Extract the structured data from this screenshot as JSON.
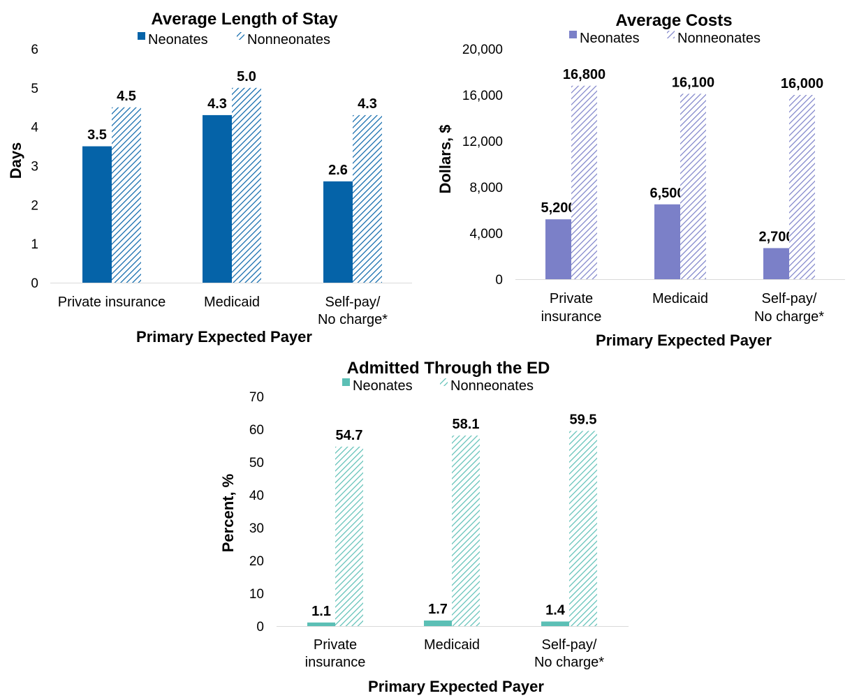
{
  "chart_data": [
    {
      "type": "bar",
      "title": "Average Length of Stay",
      "xlabel": "Primary Expected Payer",
      "ylabel": "Days",
      "ylim": [
        0,
        6
      ],
      "yticks": [
        "0",
        "1",
        "2",
        "3",
        "4",
        "5",
        "6"
      ],
      "yticks_values": [
        0,
        1,
        2,
        3,
        4,
        5,
        6
      ],
      "categories": [
        [
          "Private insurance"
        ],
        [
          "Medicaid"
        ],
        [
          "Self-pay/",
          "No charge*"
        ]
      ],
      "series": [
        {
          "name": "Neonates",
          "values": [
            3.5,
            4.3,
            2.6
          ],
          "labels": [
            "3.5",
            "4.3",
            "2.6"
          ],
          "pattern": "solid"
        },
        {
          "name": "Nonneonates",
          "values": [
            4.5,
            5.0,
            4.3
          ],
          "labels": [
            "4.5",
            "5.0",
            "4.3"
          ],
          "pattern": "hatched"
        }
      ],
      "color": "#0563A8",
      "grid": false,
      "legend_position": "top"
    },
    {
      "type": "bar",
      "title": "Average Costs",
      "xlabel": "Primary Expected Payer",
      "ylabel": "Dollars, $",
      "ylim": [
        0,
        20000
      ],
      "yticks": [
        "0",
        "4,000",
        "8,000",
        "12,000",
        "16,000",
        "20,000"
      ],
      "yticks_values": [
        0,
        4000,
        8000,
        12000,
        16000,
        20000
      ],
      "categories": [
        [
          "Private",
          "insurance"
        ],
        [
          "Medicaid"
        ],
        [
          "Self-pay/",
          "No charge*"
        ]
      ],
      "series": [
        {
          "name": "Neonates",
          "values": [
            5200,
            6500,
            2700
          ],
          "labels": [
            "5,200",
            "6,500",
            "2,700"
          ],
          "pattern": "solid"
        },
        {
          "name": "Nonneonates",
          "values": [
            16800,
            16100,
            16000
          ],
          "labels": [
            "16,800",
            "16,100",
            "16,000"
          ],
          "pattern": "hatched"
        }
      ],
      "color": "#7B80C8",
      "grid": false,
      "legend_position": "top"
    },
    {
      "type": "bar",
      "title": "Admitted Through the ED",
      "xlabel": "Primary Expected Payer",
      "ylabel": "Percent, %",
      "ylim": [
        0,
        70
      ],
      "yticks": [
        "0",
        "10",
        "20",
        "30",
        "40",
        "50",
        "60",
        "70"
      ],
      "yticks_values": [
        0,
        10,
        20,
        30,
        40,
        50,
        60,
        70
      ],
      "categories": [
        [
          "Private",
          "insurance"
        ],
        [
          "Medicaid"
        ],
        [
          "Self-pay/",
          "No charge*"
        ]
      ],
      "series": [
        {
          "name": "Neonates",
          "values": [
            1.1,
            1.7,
            1.4
          ],
          "labels": [
            "1.1",
            "1.7",
            "1.4"
          ],
          "pattern": "solid"
        },
        {
          "name": "Nonneonates",
          "values": [
            54.7,
            58.1,
            59.5
          ],
          "labels": [
            "54.7",
            "58.1",
            "59.5"
          ],
          "pattern": "hatched"
        }
      ],
      "color": "#5BBFB5",
      "grid": false,
      "legend_position": "top"
    }
  ]
}
